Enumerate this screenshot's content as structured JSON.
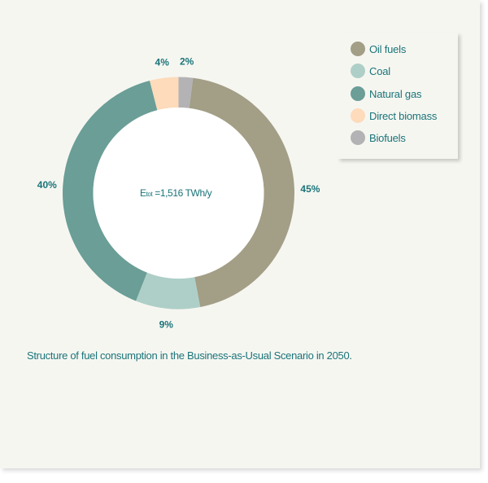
{
  "chart_data": {
    "type": "pie",
    "donut": true,
    "center_label": {
      "main": "E",
      "sub": "tot",
      "rest": " =1,516 TWh/y"
    },
    "categories": [
      "Biofuels",
      "Oil fuels",
      "Coal",
      "Natural gas",
      "Direct biomass"
    ],
    "values": [
      2,
      45,
      9,
      40,
      4
    ],
    "value_labels": [
      "2%",
      "45%",
      "9%",
      "40%",
      "4%"
    ],
    "colors": [
      "#b3b3b5",
      "#a39e86",
      "#aecfc7",
      "#6a9e97",
      "#fddbbb"
    ],
    "legend_placement": "top-right",
    "caption": "Structure of fuel consumption in the Business-as-Usual Scenario in 2050."
  },
  "legend": [
    {
      "label": "Oil fuels",
      "color": "#a39e86"
    },
    {
      "label": "Coal",
      "color": "#aecfc7"
    },
    {
      "label": "Natural gas",
      "color": "#6a9e97"
    },
    {
      "label": "Direct biomass",
      "color": "#fddbbb"
    },
    {
      "label": "Biofuels",
      "color": "#b3b3b5"
    }
  ]
}
